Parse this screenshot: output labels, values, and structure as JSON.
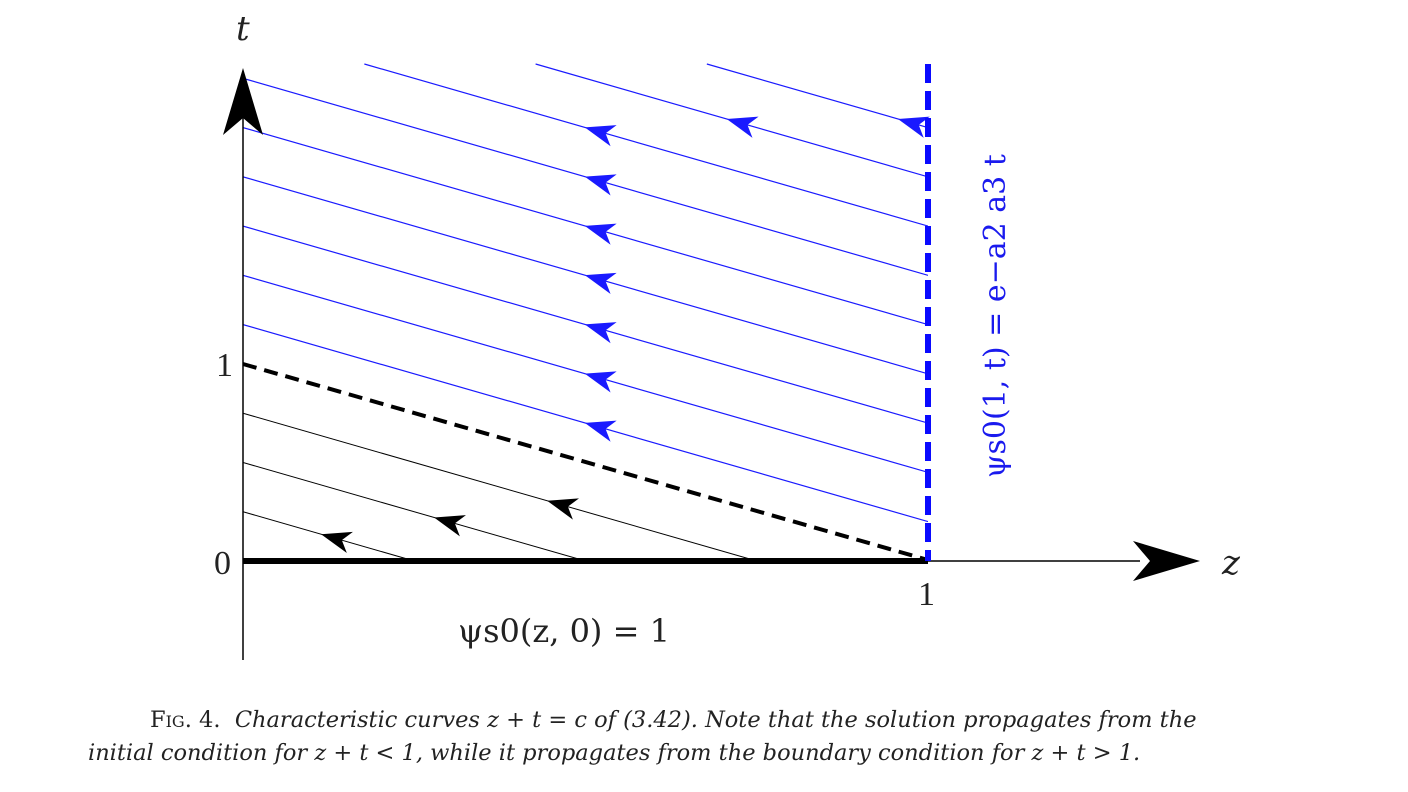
{
  "diagram": {
    "axis_labels": {
      "vertical": "t",
      "horizontal": "z"
    },
    "ticks": {
      "t_zero": "0",
      "t_one": "1",
      "z_one": "1"
    },
    "boundary_label": "ψs0(1, t) = e−a2 a3 t",
    "initial_label": "ψs0(z, 0) = 1",
    "colors": {
      "axis": "#000000",
      "initial_curves": "#000000",
      "boundary_curves": "#1a1aff",
      "boundary_line": "#0a0aff"
    },
    "characteristics": {
      "equation": "z + t = c",
      "slope": -1,
      "initial_region": {
        "c_values": [
          0.25,
          0.5,
          0.75
        ],
        "arrow_direction": "decreasing z"
      },
      "separatrix": {
        "c": 1,
        "style": "dashed"
      },
      "boundary_region": {
        "c_values": [
          1.2,
          1.45,
          1.7,
          1.95,
          2.2,
          2.45,
          2.7,
          2.95,
          3.2
        ],
        "arrow_direction": "decreasing z"
      }
    }
  },
  "caption": {
    "fig_label": "Fig. 4.",
    "line1": "Characteristic curves z + t = c of (3.42). Note that the solution propagates from the",
    "line2": "initial condition for z + t < 1, while it propagates from the boundary condition for z + t > 1."
  }
}
